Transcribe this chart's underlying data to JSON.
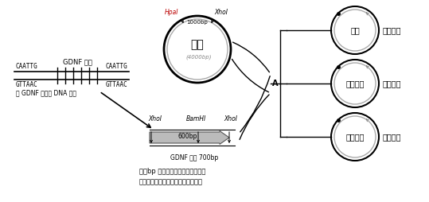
{
  "bg_color": "#ffffff",
  "left_dna_label": "GDNF 基因",
  "left_seq1_left": "CAATTG",
  "left_seq1_right": "CAATTG",
  "left_seq2_left": "GTTAAC",
  "left_seq2_right": "GTTAAC",
  "left_bottom_label": "含 GDNF 基因的 DNA 片段",
  "vector_label": "载体",
  "vector_size": "(4000bp)",
  "vector_enzyme_left": "HpaI",
  "vector_enzyme_right": "XhoI",
  "vector_arc_size": "1000bp",
  "gene_enzyme_left": "XhoI",
  "gene_enzyme_mid": "BamHI",
  "gene_enzyme_right": "XhoI",
  "gene_arc_size": "600bp",
  "gene_label": "GDNF 基因 700bp",
  "point_A": "A",
  "circle1_label": "载体",
  "circle1_right": "载体自连",
  "circle2_label": "重组载体",
  "circle2_right": "正向连接",
  "circle3_label": "重组载体",
  "circle3_right": "反向连接",
  "note_line1": "注：bp 表示碱基对，载体和基因片",
  "note_line2": "段上的小箭号示相关限制酶的酶切点",
  "colors": {
    "black": "#000000",
    "gray": "#888888",
    "lightgray": "#aaaaaa",
    "red": "#bb0000",
    "gene_fill": "#bbbbbb",
    "gene_edge": "#555555"
  }
}
